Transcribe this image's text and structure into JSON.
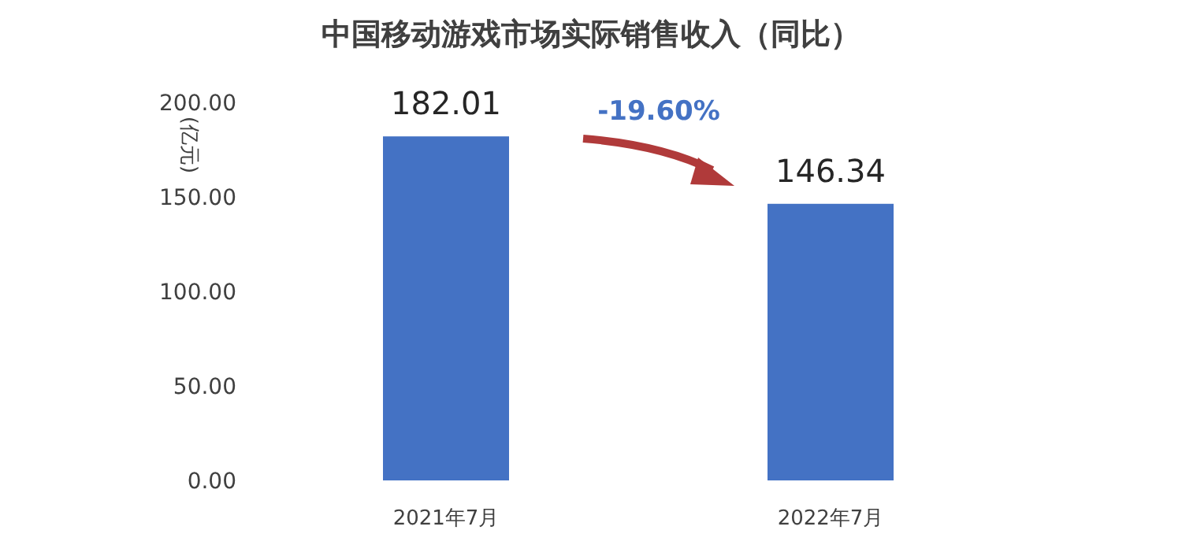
{
  "chart_data": {
    "type": "bar",
    "title": "中国移动游戏市场实际销售收入（同比）",
    "ylabel": "(亿元)",
    "categories": [
      "2021年7月",
      "2022年7月"
    ],
    "values": [
      182.01,
      146.34
    ],
    "color": "#4472c4",
    "data_labels": true,
    "ylim": [
      0,
      200
    ],
    "yticks": [
      {
        "value": 0,
        "label": "0.00"
      },
      {
        "value": 50,
        "label": "50.00"
      },
      {
        "value": 100,
        "label": "100.00"
      },
      {
        "value": 150,
        "label": "150.00"
      },
      {
        "value": 200,
        "label": "200.00"
      }
    ],
    "annotations": [
      "-19.60%"
    ]
  }
}
